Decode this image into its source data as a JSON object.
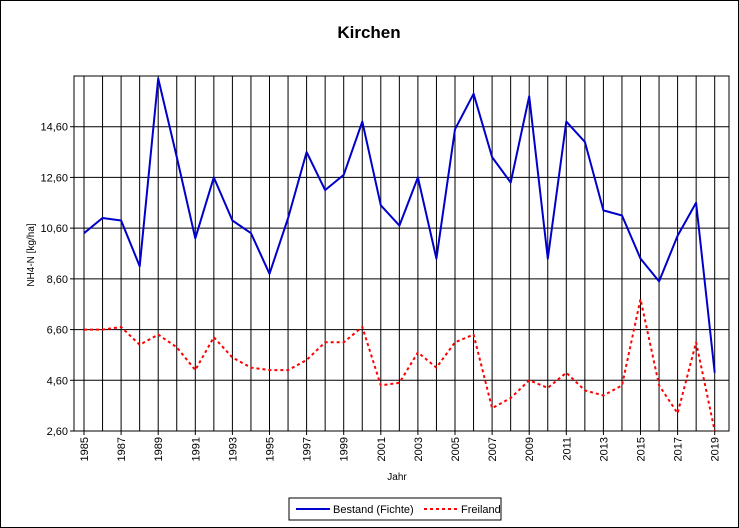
{
  "chart_data": {
    "type": "line",
    "title": "Kirchen",
    "xlabel": "Jahr",
    "ylabel": "NH4-N [kg/ha]",
    "xlim": [
      1985,
      2019
    ],
    "ylim": [
      2.6,
      16.6
    ],
    "yticks": [
      "2,60",
      "4,60",
      "6,60",
      "8,60",
      "10,60",
      "12,60",
      "14,60"
    ],
    "ytick_values": [
      2.6,
      4.6,
      6.6,
      8.6,
      10.6,
      12.6,
      14.6
    ],
    "xticks": [
      "1985",
      "1987",
      "1989",
      "1991",
      "1993",
      "1995",
      "1997",
      "1999",
      "2001",
      "2003",
      "2005",
      "2007",
      "2009",
      "2011",
      "2013",
      "2015",
      "2017",
      "2019"
    ],
    "grid": true,
    "legend_position": "bottom-center",
    "x": [
      1985,
      1986,
      1987,
      1988,
      1989,
      1990,
      1991,
      1992,
      1993,
      1994,
      1995,
      1996,
      1997,
      1998,
      1999,
      2000,
      2001,
      2002,
      2003,
      2004,
      2005,
      2006,
      2007,
      2008,
      2009,
      2010,
      2011,
      2012,
      2013,
      2014,
      2015,
      2016,
      2017,
      2018,
      2019
    ],
    "series": [
      {
        "name": "Bestand (Fichte)",
        "color": "#0000cc",
        "style": "solid",
        "values": [
          10.4,
          11.0,
          10.9,
          9.1,
          16.5,
          13.4,
          10.2,
          12.6,
          10.9,
          10.4,
          8.8,
          11.0,
          13.6,
          12.1,
          12.7,
          14.8,
          11.5,
          10.7,
          12.6,
          9.4,
          14.5,
          15.9,
          13.4,
          12.4,
          15.8,
          9.4,
          14.8,
          14.0,
          11.3,
          11.1,
          9.4,
          8.5,
          10.3,
          11.6,
          4.9
        ]
      },
      {
        "name": "Freiland",
        "color": "#ff0000",
        "style": "dashed",
        "values": [
          6.6,
          6.6,
          6.7,
          6.0,
          6.4,
          5.9,
          5.0,
          6.3,
          5.5,
          5.1,
          5.0,
          5.0,
          5.4,
          6.1,
          6.1,
          6.7,
          4.4,
          4.5,
          5.7,
          5.1,
          6.1,
          6.4,
          3.5,
          3.9,
          4.6,
          4.3,
          4.9,
          4.2,
          4.0,
          4.4,
          7.8,
          4.4,
          3.3,
          6.1,
          2.6
        ]
      }
    ]
  }
}
